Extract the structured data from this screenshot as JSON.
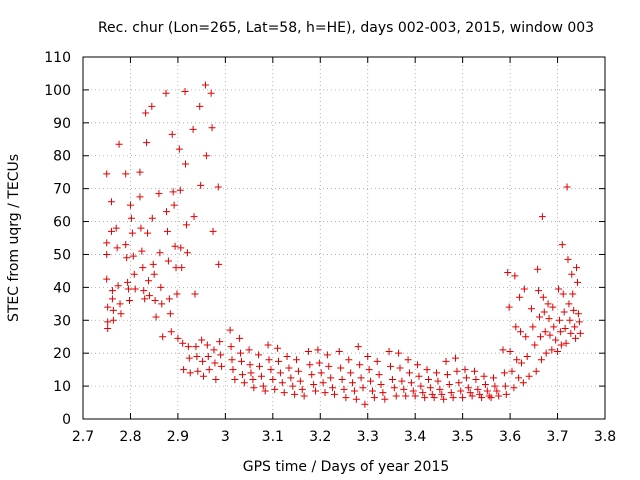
{
  "chart_data": {
    "type": "scatter",
    "title": "Rec. chur (Lon=265, Lat=58, h=HE), days 002-003, 2015, window 003",
    "xlabel": "GPS time / Days of year 2015",
    "ylabel": "STEC from uqrg / TECUs",
    "xlim": [
      2.7,
      3.8
    ],
    "ylim": [
      0,
      110
    ],
    "xticks": [
      "2.7",
      "2.8",
      "2.9",
      "3",
      "3.1",
      "3.2",
      "3.3",
      "3.4",
      "3.5",
      "3.6",
      "3.7",
      "3.8"
    ],
    "yticks": [
      "0",
      "10",
      "20",
      "30",
      "40",
      "50",
      "60",
      "70",
      "80",
      "90",
      "100",
      "110"
    ],
    "grid": true,
    "legend": "none",
    "marker": "+",
    "color": "#e00000",
    "series": [
      {
        "points": [
          [
            2.75,
            74.5
          ],
          [
            2.75,
            53.5
          ],
          [
            2.75,
            50.0
          ],
          [
            2.75,
            42.5
          ],
          [
            2.752,
            34.0
          ],
          [
            2.752,
            29.5
          ],
          [
            2.752,
            27.5
          ],
          [
            2.76,
            66.0
          ],
          [
            2.76,
            57.0
          ],
          [
            2.762,
            39.0
          ],
          [
            2.762,
            36.5
          ],
          [
            2.764,
            33.0
          ],
          [
            2.764,
            30.0
          ],
          [
            2.77,
            58.0
          ],
          [
            2.772,
            52.0
          ],
          [
            2.774,
            40.5
          ],
          [
            2.776,
            83.5
          ],
          [
            2.778,
            35.0
          ],
          [
            2.78,
            32.0
          ],
          [
            2.79,
            74.5
          ],
          [
            2.79,
            53.0
          ],
          [
            2.792,
            49.0
          ],
          [
            2.794,
            41.5
          ],
          [
            2.796,
            39.5
          ],
          [
            2.798,
            36.0
          ],
          [
            2.8,
            65.0
          ],
          [
            2.802,
            61.0
          ],
          [
            2.804,
            56.5
          ],
          [
            2.806,
            49.5
          ],
          [
            2.808,
            44.0
          ],
          [
            2.81,
            39.5
          ],
          [
            2.82,
            75.0
          ],
          [
            2.82,
            67.5
          ],
          [
            2.822,
            58.0
          ],
          [
            2.824,
            51.0
          ],
          [
            2.826,
            46.0
          ],
          [
            2.828,
            39.0
          ],
          [
            2.83,
            36.5
          ],
          [
            2.832,
            93.0
          ],
          [
            2.834,
            84.0
          ],
          [
            2.836,
            56.5
          ],
          [
            2.838,
            42.0
          ],
          [
            2.84,
            37.5
          ],
          [
            2.845,
            95.0
          ],
          [
            2.846,
            61.0
          ],
          [
            2.848,
            47.0
          ],
          [
            2.85,
            44.0
          ],
          [
            2.852,
            36.0
          ],
          [
            2.854,
            31.0
          ],
          [
            2.86,
            68.5
          ],
          [
            2.862,
            50.5
          ],
          [
            2.864,
            40.0
          ],
          [
            2.866,
            35.0
          ],
          [
            2.868,
            25.0
          ],
          [
            2.875,
            99.0
          ],
          [
            2.876,
            63.0
          ],
          [
            2.878,
            57.0
          ],
          [
            2.88,
            48.0
          ],
          [
            2.882,
            36.5
          ],
          [
            2.884,
            32.0
          ],
          [
            2.886,
            26.5
          ],
          [
            2.888,
            86.5
          ],
          [
            2.89,
            69.0
          ],
          [
            2.892,
            65.0
          ],
          [
            2.894,
            52.5
          ],
          [
            2.896,
            46.0
          ],
          [
            2.898,
            38.0
          ],
          [
            2.9,
            24.5
          ],
          [
            2.903,
            82.0
          ],
          [
            2.905,
            69.5
          ],
          [
            2.906,
            52.0
          ],
          [
            2.908,
            46.0
          ],
          [
            2.91,
            23.0
          ],
          [
            2.912,
            15.0
          ],
          [
            2.915,
            99.5
          ],
          [
            2.916,
            77.5
          ],
          [
            2.918,
            59.0
          ],
          [
            2.92,
            50.5
          ],
          [
            2.922,
            22.0
          ],
          [
            2.924,
            18.5
          ],
          [
            2.926,
            14.0
          ],
          [
            2.932,
            88.0
          ],
          [
            2.934,
            61.5
          ],
          [
            2.936,
            38.0
          ],
          [
            2.938,
            22.0
          ],
          [
            2.94,
            19.0
          ],
          [
            2.942,
            14.5
          ],
          [
            2.946,
            95.0
          ],
          [
            2.948,
            71.0
          ],
          [
            2.95,
            24.0
          ],
          [
            2.952,
            17.5
          ],
          [
            2.954,
            13.0
          ],
          [
            2.958,
            101.5
          ],
          [
            2.96,
            80.0
          ],
          [
            2.962,
            22.5
          ],
          [
            2.964,
            19.0
          ],
          [
            2.966,
            15.0
          ],
          [
            2.97,
            99.0
          ],
          [
            2.972,
            88.5
          ],
          [
            2.974,
            57.0
          ],
          [
            2.976,
            21.0
          ],
          [
            2.978,
            17.0
          ],
          [
            2.98,
            12.0
          ],
          [
            2.985,
            70.5
          ],
          [
            2.986,
            47.0
          ],
          [
            2.988,
            23.5
          ],
          [
            2.99,
            19.5
          ],
          [
            2.992,
            16.0
          ],
          [
            3.01,
            27.0
          ],
          [
            3.012,
            22.0
          ],
          [
            3.014,
            18.0
          ],
          [
            3.016,
            15.0
          ],
          [
            3.02,
            12.0
          ],
          [
            3.03,
            24.5
          ],
          [
            3.032,
            20.0
          ],
          [
            3.034,
            17.5
          ],
          [
            3.036,
            13.5
          ],
          [
            3.04,
            11.0
          ],
          [
            3.05,
            21.0
          ],
          [
            3.052,
            16.5
          ],
          [
            3.054,
            14.0
          ],
          [
            3.058,
            12.0
          ],
          [
            3.06,
            9.5
          ],
          [
            3.07,
            19.5
          ],
          [
            3.072,
            16.0
          ],
          [
            3.076,
            13.0
          ],
          [
            3.08,
            10.0
          ],
          [
            3.084,
            8.5
          ],
          [
            3.09,
            22.5
          ],
          [
            3.092,
            18.0
          ],
          [
            3.096,
            15.0
          ],
          [
            3.1,
            12.0
          ],
          [
            3.104,
            9.0
          ],
          [
            3.11,
            21.5
          ],
          [
            3.112,
            17.5
          ],
          [
            3.116,
            14.0
          ],
          [
            3.12,
            11.0
          ],
          [
            3.124,
            8.0
          ],
          [
            3.13,
            19.0
          ],
          [
            3.134,
            15.5
          ],
          [
            3.138,
            12.5
          ],
          [
            3.142,
            10.0
          ],
          [
            3.146,
            7.5
          ],
          [
            3.15,
            18.0
          ],
          [
            3.154,
            14.5
          ],
          [
            3.158,
            11.5
          ],
          [
            3.162,
            9.0
          ],
          [
            3.166,
            7.0
          ],
          [
            3.175,
            20.5
          ],
          [
            3.178,
            16.5
          ],
          [
            3.182,
            13.5
          ],
          [
            3.186,
            10.5
          ],
          [
            3.19,
            8.5
          ],
          [
            3.195,
            21.0
          ],
          [
            3.198,
            17.0
          ],
          [
            3.202,
            14.0
          ],
          [
            3.206,
            11.0
          ],
          [
            3.21,
            8.0
          ],
          [
            3.215,
            19.5
          ],
          [
            3.218,
            16.0
          ],
          [
            3.222,
            12.5
          ],
          [
            3.226,
            9.5
          ],
          [
            3.23,
            7.5
          ],
          [
            3.24,
            20.5
          ],
          [
            3.243,
            15.5
          ],
          [
            3.246,
            12.0
          ],
          [
            3.25,
            9.0
          ],
          [
            3.254,
            6.5
          ],
          [
            3.26,
            18.0
          ],
          [
            3.264,
            14.0
          ],
          [
            3.268,
            11.0
          ],
          [
            3.272,
            8.5
          ],
          [
            3.276,
            6.0
          ],
          [
            3.28,
            22.0
          ],
          [
            3.283,
            16.5
          ],
          [
            3.286,
            12.5
          ],
          [
            3.29,
            9.5
          ],
          [
            3.294,
            4.5
          ],
          [
            3.3,
            19.0
          ],
          [
            3.303,
            15.0
          ],
          [
            3.306,
            11.5
          ],
          [
            3.31,
            8.5
          ],
          [
            3.314,
            6.5
          ],
          [
            3.32,
            17.5
          ],
          [
            3.324,
            13.5
          ],
          [
            3.328,
            10.5
          ],
          [
            3.332,
            8.0
          ],
          [
            3.336,
            6.0
          ],
          [
            3.345,
            20.5
          ],
          [
            3.348,
            16.0
          ],
          [
            3.352,
            12.0
          ],
          [
            3.356,
            9.5
          ],
          [
            3.36,
            7.0
          ],
          [
            3.365,
            20.0
          ],
          [
            3.368,
            15.5
          ],
          [
            3.372,
            11.5
          ],
          [
            3.376,
            9.0
          ],
          [
            3.38,
            7.0
          ],
          [
            3.385,
            18.0
          ],
          [
            3.388,
            14.0
          ],
          [
            3.392,
            11.0
          ],
          [
            3.396,
            8.5
          ],
          [
            3.4,
            7.0
          ],
          [
            3.405,
            16.5
          ],
          [
            3.408,
            13.0
          ],
          [
            3.412,
            10.0
          ],
          [
            3.416,
            8.0
          ],
          [
            3.42,
            6.5
          ],
          [
            3.425,
            15.0
          ],
          [
            3.428,
            12.0
          ],
          [
            3.432,
            9.5
          ],
          [
            3.436,
            7.5
          ],
          [
            3.44,
            6.5
          ],
          [
            3.445,
            14.0
          ],
          [
            3.448,
            11.5
          ],
          [
            3.452,
            9.0
          ],
          [
            3.456,
            7.5
          ],
          [
            3.46,
            6.0
          ],
          [
            3.465,
            17.5
          ],
          [
            3.468,
            13.5
          ],
          [
            3.472,
            10.5
          ],
          [
            3.476,
            8.0
          ],
          [
            3.48,
            6.5
          ],
          [
            3.485,
            18.5
          ],
          [
            3.488,
            14.5
          ],
          [
            3.492,
            11.0
          ],
          [
            3.496,
            8.5
          ],
          [
            3.5,
            6.5
          ],
          [
            3.505,
            15.0
          ],
          [
            3.508,
            12.5
          ],
          [
            3.512,
            9.5
          ],
          [
            3.516,
            8.0
          ],
          [
            3.52,
            7.0
          ],
          [
            3.525,
            14.5
          ],
          [
            3.528,
            12.0
          ],
          [
            3.532,
            9.0
          ],
          [
            3.536,
            7.5
          ],
          [
            3.54,
            6.5
          ],
          [
            3.545,
            13.0
          ],
          [
            3.548,
            10.5
          ],
          [
            3.552,
            8.5
          ],
          [
            3.556,
            7.0
          ],
          [
            3.56,
            6.5
          ],
          [
            3.565,
            12.5
          ],
          [
            3.568,
            10.0
          ],
          [
            3.572,
            8.5
          ],
          [
            3.576,
            7.0
          ],
          [
            3.585,
            21.0
          ],
          [
            3.588,
            14.0
          ],
          [
            3.59,
            10.0
          ],
          [
            3.592,
            7.5
          ],
          [
            3.595,
            44.5
          ],
          [
            3.598,
            34.0
          ],
          [
            3.6,
            20.5
          ],
          [
            3.604,
            14.5
          ],
          [
            3.608,
            9.5
          ],
          [
            3.61,
            43.5
          ],
          [
            3.612,
            28.0
          ],
          [
            3.614,
            18.0
          ],
          [
            3.618,
            12.5
          ],
          [
            3.62,
            37.0
          ],
          [
            3.622,
            26.5
          ],
          [
            3.624,
            17.0
          ],
          [
            3.628,
            11.0
          ],
          [
            3.63,
            39.5
          ],
          [
            3.633,
            25.0
          ],
          [
            3.636,
            19.0
          ],
          [
            3.64,
            13.0
          ],
          [
            3.645,
            33.5
          ],
          [
            3.648,
            28.0
          ],
          [
            3.652,
            22.5
          ],
          [
            3.655,
            14.5
          ],
          [
            3.658,
            45.5
          ],
          [
            3.66,
            39.0
          ],
          [
            3.662,
            31.0
          ],
          [
            3.664,
            25.0
          ],
          [
            3.666,
            18.0
          ],
          [
            3.668,
            61.5
          ],
          [
            3.67,
            37.0
          ],
          [
            3.672,
            32.5
          ],
          [
            3.674,
            26.5
          ],
          [
            3.676,
            20.0
          ],
          [
            3.68,
            35.0
          ],
          [
            3.682,
            30.5
          ],
          [
            3.684,
            25.5
          ],
          [
            3.688,
            21.0
          ],
          [
            3.69,
            34.0
          ],
          [
            3.692,
            28.0
          ],
          [
            3.696,
            24.0
          ],
          [
            3.7,
            20.5
          ],
          [
            3.702,
            39.5
          ],
          [
            3.704,
            30.0
          ],
          [
            3.706,
            26.5
          ],
          [
            3.708,
            22.5
          ],
          [
            3.71,
            53.0
          ],
          [
            3.712,
            38.0
          ],
          [
            3.714,
            32.5
          ],
          [
            3.716,
            27.5
          ],
          [
            3.718,
            23.0
          ],
          [
            3.72,
            70.5
          ],
          [
            3.722,
            48.5
          ],
          [
            3.724,
            35.0
          ],
          [
            3.726,
            30.0
          ],
          [
            3.728,
            26.0
          ],
          [
            3.73,
            44.0
          ],
          [
            3.732,
            38.0
          ],
          [
            3.734,
            33.0
          ],
          [
            3.736,
            28.0
          ],
          [
            3.738,
            24.5
          ],
          [
            3.74,
            46.0
          ],
          [
            3.742,
            41.5
          ],
          [
            3.744,
            32.0
          ],
          [
            3.746,
            29.5
          ],
          [
            3.748,
            26.0
          ]
        ]
      }
    ]
  }
}
